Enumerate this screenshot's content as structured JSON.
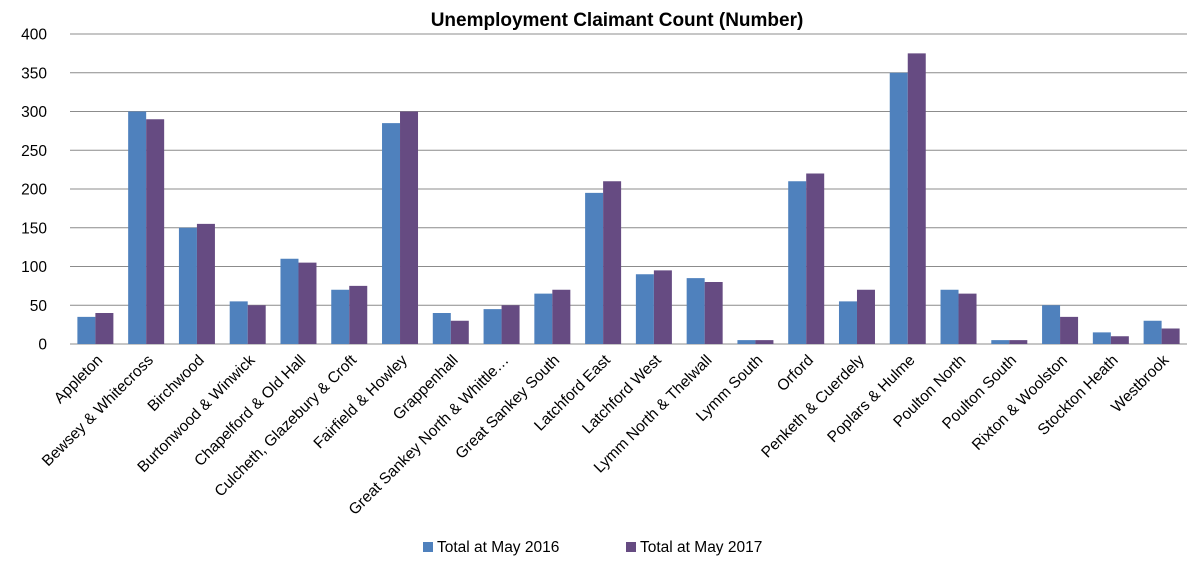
{
  "chart_data": {
    "type": "bar",
    "title": "Unemployment Claimant Count (Number)",
    "xlabel": "",
    "ylabel": "",
    "ylim": [
      0,
      400
    ],
    "yticks": [
      0,
      50,
      100,
      150,
      200,
      250,
      300,
      350,
      400
    ],
    "grid": true,
    "legend_position": "bottom",
    "categories": [
      "Appleton",
      "Bewsey & Whitecross",
      "Birchwood",
      "Burtonwood & Winwick",
      "Chapelford & Old Hall",
      "Culcheth, Glazebury & Croft",
      "Fairfield & Howley",
      "Grappenhall",
      "Great Sankey North & Whittle…",
      "Great Sankey South",
      "Latchford East",
      "Latchford West",
      "Lymm North & Thelwall",
      "Lymm South",
      "Orford",
      "Penketh & Cuerdely",
      "Poplars & Hulme",
      "Poulton North",
      "Poulton South",
      "Rixton & Woolston",
      "Stockton Heath",
      "Westbrook"
    ],
    "series": [
      {
        "name": "Total at May 2016",
        "color": "#4f81bd",
        "values": [
          35,
          300,
          150,
          55,
          110,
          70,
          285,
          40,
          45,
          65,
          195,
          90,
          85,
          5,
          210,
          55,
          350,
          70,
          5,
          50,
          15,
          30
        ]
      },
      {
        "name": "Total at May 2017",
        "color": "#664b82",
        "values": [
          40,
          290,
          155,
          50,
          105,
          75,
          300,
          30,
          50,
          70,
          210,
          95,
          80,
          5,
          220,
          70,
          375,
          65,
          5,
          35,
          10,
          20
        ]
      }
    ]
  }
}
